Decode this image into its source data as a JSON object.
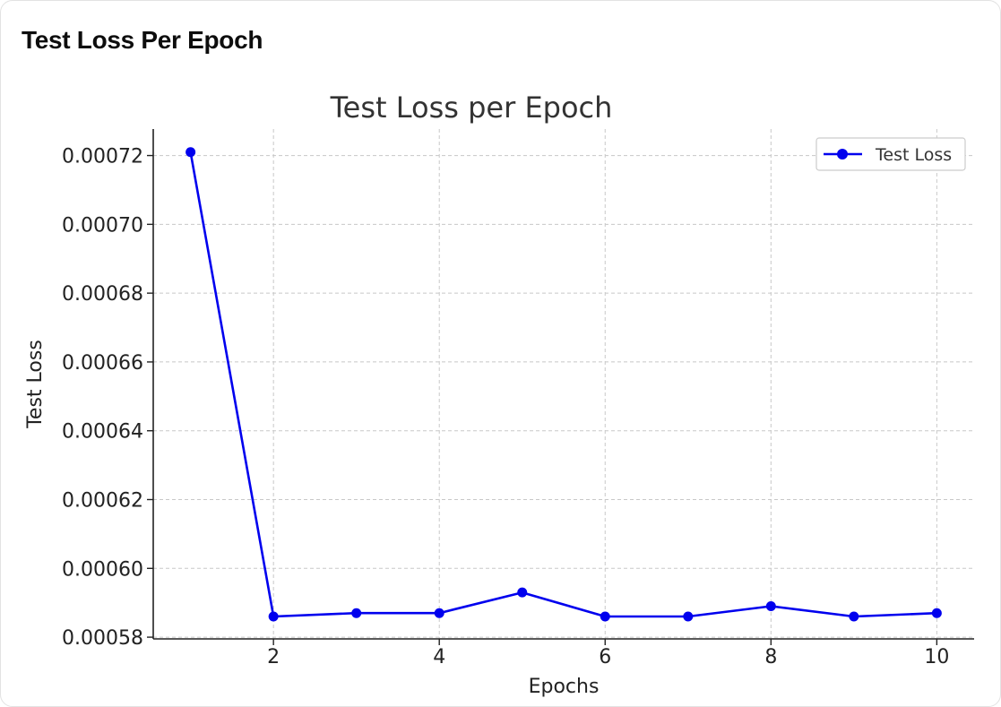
{
  "header": {
    "title": "Test Loss Per Epoch"
  },
  "chart_data": {
    "type": "line",
    "title": "Test Loss per Epoch",
    "xlabel": "Epochs",
    "ylabel": "Test Loss",
    "x": [
      1,
      2,
      3,
      4,
      5,
      6,
      7,
      8,
      9,
      10
    ],
    "series": [
      {
        "name": "Test Loss",
        "color": "#0000ee",
        "marker": "circle",
        "values": [
          0.000721,
          0.000586,
          0.000587,
          0.000587,
          0.000593,
          0.000586,
          0.000586,
          0.000589,
          0.000586,
          0.000587
        ]
      }
    ],
    "x_ticks": [
      2,
      4,
      6,
      8,
      10
    ],
    "x_tick_labels": [
      "2",
      "4",
      "6",
      "8",
      "10"
    ],
    "y_ticks": [
      0.00058,
      0.0006,
      0.00062,
      0.00064,
      0.00066,
      0.00068,
      0.0007,
      0.00072
    ],
    "y_tick_labels": [
      "0.00058",
      "0.00060",
      "0.00062",
      "0.00064",
      "0.00066",
      "0.00068",
      "0.00070",
      "0.00072"
    ],
    "xlim": [
      0.55,
      10.45
    ],
    "ylim": [
      0.0005795,
      0.0007277
    ],
    "grid": true,
    "legend": "top-right"
  }
}
